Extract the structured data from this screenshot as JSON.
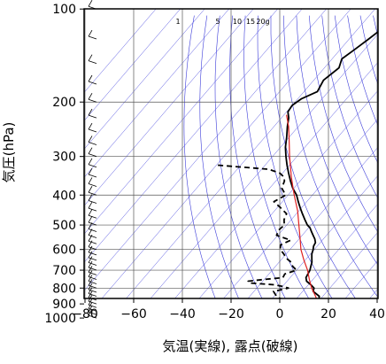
{
  "chart_data": {
    "type": "line",
    "title": "",
    "xlabel": "気温(実線), 露点(破線)",
    "ylabel": "気圧(hPa)",
    "x_range": [
      -80,
      40
    ],
    "y_range_hpa": [
      100,
      1050
    ],
    "y_scale": "log (reversed)",
    "grid": true,
    "x_ticks": [
      -80,
      -60,
      -40,
      -20,
      0,
      20,
      40
    ],
    "x_tick_labels": [
      "−80",
      "−60",
      "−40",
      "−20",
      "0",
      "20",
      "40"
    ],
    "y_ticks": [
      100,
      200,
      300,
      400,
      500,
      600,
      700,
      800,
      900,
      1000
    ],
    "y_tick_labels": [
      "100",
      "200",
      "300",
      "400",
      "500",
      "600",
      "700",
      "800",
      "900",
      "1000"
    ],
    "mixing_ratio_labels": [
      "1",
      "5",
      "10",
      "15",
      "20g"
    ],
    "series": [
      {
        "style": "solid black",
        "p": [
          1000,
          960,
          925,
          900,
          870,
          850,
          820,
          800,
          780,
          760,
          740,
          720,
          700,
          680,
          660,
          640,
          620,
          600,
          585,
          570,
          555,
          540,
          525,
          510,
          500,
          480,
          460,
          440,
          420,
          400,
          380,
          360,
          340,
          320,
          300,
          280,
          260,
          240,
          225,
          215,
          205,
          195,
          185,
          170,
          155,
          145,
          135,
          125,
          115,
          108,
          103,
          100
        ],
        "t": [
          19.5,
          15.0,
          11.5,
          10.5,
          9.5,
          8.5,
          4.3,
          3.5,
          1.0,
          -2.0,
          -3.5,
          -4.0,
          -4.5,
          -5.5,
          -6.5,
          -8.0,
          -9.5,
          -10.5,
          -11.5,
          -12.0,
          -13.5,
          -15.5,
          -17.5,
          -19.5,
          -21.5,
          -24.5,
          -27.5,
          -30.5,
          -33.5,
          -36.5,
          -40.5,
          -44.0,
          -47.5,
          -51.0,
          -54.5,
          -58.0,
          -61.0,
          -64.5,
          -67.0,
          -69.5,
          -70.0,
          -68.5,
          -64.5,
          -66.0,
          -64.0,
          -66.0,
          -64.0,
          -62.0,
          -60.0,
          -59.0,
          -58.5,
          -58.5
        ]
      },
      {
        "style": "dashed black",
        "p": [
          1000,
          960,
          925,
          900,
          880,
          860,
          840,
          820,
          800,
          790,
          780,
          770,
          760,
          750,
          740,
          720,
          700,
          680,
          660,
          640,
          620,
          600,
          580,
          560,
          540,
          520,
          500,
          480,
          460,
          440,
          420,
          400,
          380,
          360,
          350,
          340,
          330,
          320
        ],
        "td": [
          13.5,
          9.0,
          6.0,
          1.0,
          -2.0,
          -8.0,
          -10.0,
          -12.0,
          -7.0,
          -10.0,
          -14.0,
          -25.0,
          -26.0,
          -20.0,
          -13.0,
          -13.5,
          -10.0,
          -13.0,
          -15.0,
          -18.5,
          -21.0,
          -24.0,
          -25.5,
          -23.0,
          -30.5,
          -31.5,
          -31.0,
          -33.0,
          -34.0,
          -38.5,
          -43.5,
          -41.0,
          -45.0,
          -46.5,
          -48.0,
          -51.0,
          -57.0,
          -80.0
        ]
      },
      {
        "style": "solid red",
        "p": [
          1000,
          950,
          900,
          850,
          800,
          750,
          700,
          650,
          600,
          550,
          500,
          450,
          400,
          350,
          300,
          260,
          240,
          220
        ],
        "t": [
          19.5,
          15.0,
          11.0,
          7.0,
          2.5,
          -1.5,
          -5.5,
          -10.5,
          -15.5,
          -20.0,
          -25.0,
          -30.5,
          -37.5,
          -45.0,
          -53.0,
          -60.0,
          -64.0,
          -69.0
        ]
      }
    ]
  }
}
